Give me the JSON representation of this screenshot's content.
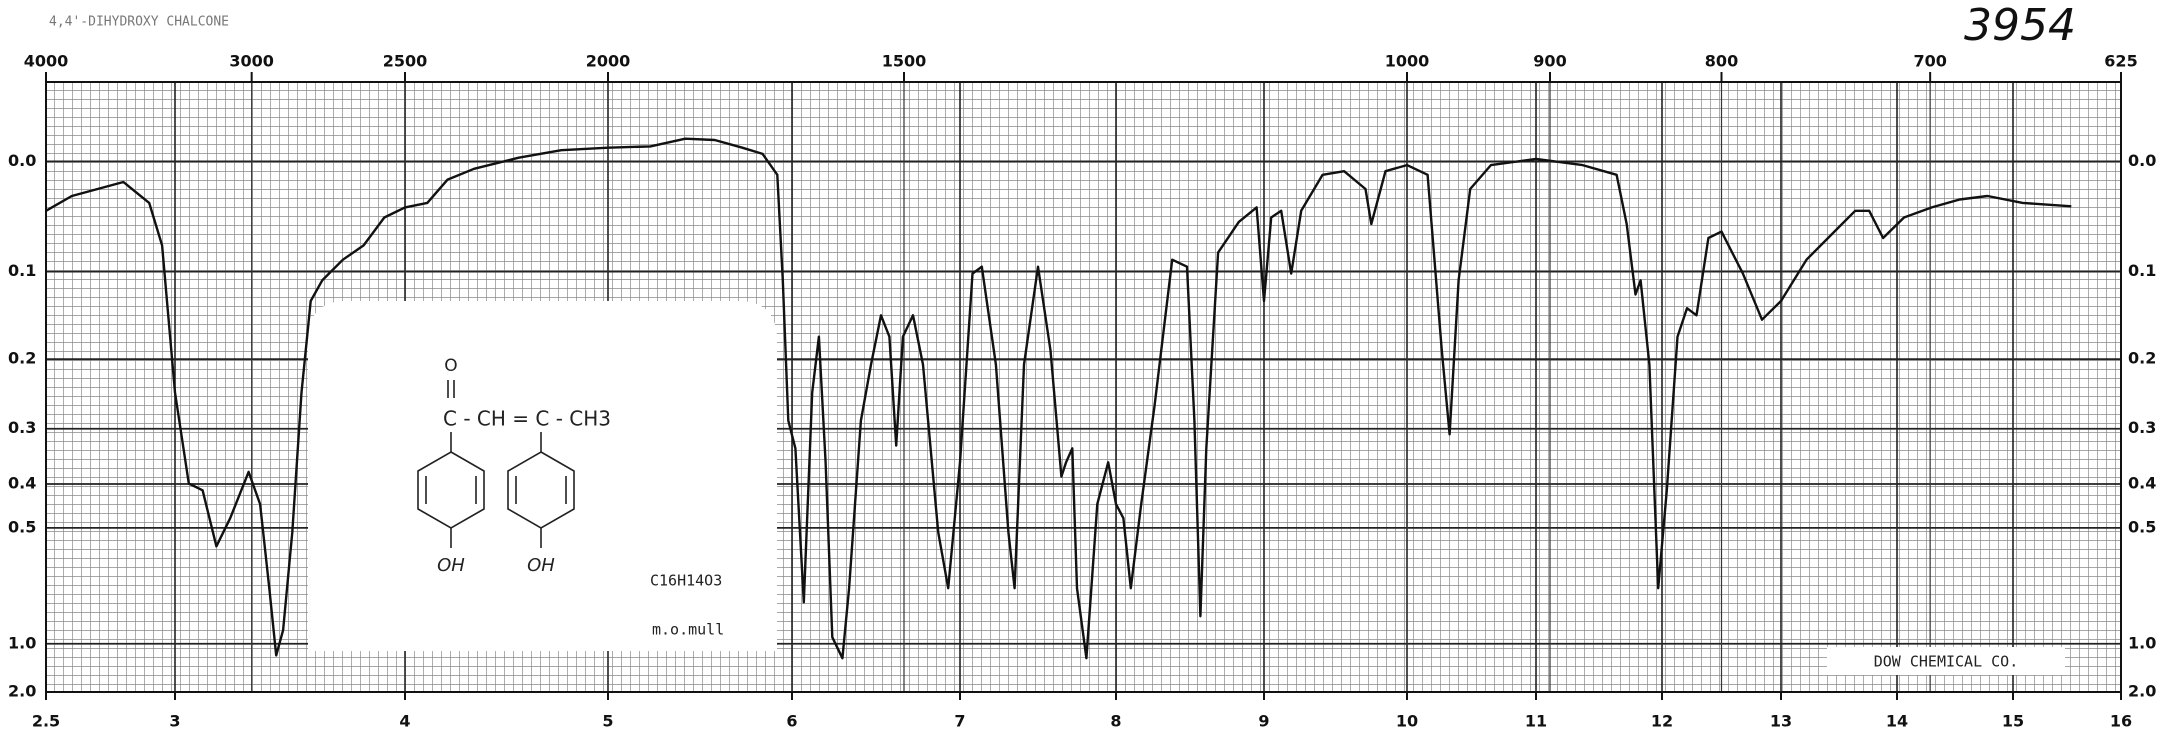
{
  "chart_data": {
    "type": "line",
    "title": "4,4'-DIHYDROXY CHALCONE",
    "catalog_number": "3954",
    "structure": {
      "carbonyl": "O",
      "chain": "C - CH = C - CH3",
      "substituents": [
        "OH",
        "OH"
      ]
    },
    "formula": "C16H14O3",
    "sample": "m.o.mull",
    "source": "DOW CHEMICAL CO.",
    "color": "#111111",
    "grid": true,
    "yscale": "transmittance",
    "xlim": [
      2.5,
      16
    ],
    "xticks": [
      2.5,
      3,
      4,
      5,
      6,
      7,
      8,
      9,
      10,
      11,
      12,
      13,
      14,
      15,
      16
    ],
    "x2ticks": [
      4000,
      3000,
      2500,
      2000,
      1500,
      1000,
      900,
      800,
      700,
      625
    ],
    "ylim": [
      -0.06,
      2
    ],
    "yticks": [
      {
        "value": 0,
        "label": "0.0"
      },
      0.1,
      0.2,
      0.3,
      0.4,
      0.5,
      {
        "value": 1,
        "label": "1.0"
      },
      {
        "value": 2,
        "label": "2.0"
      }
    ],
    "x": [
      2.5,
      2.6,
      2.7,
      2.8,
      2.9,
      2.95,
      3.0,
      3.06,
      3.12,
      3.18,
      3.24,
      3.32,
      3.37,
      3.41,
      3.44,
      3.47,
      3.51,
      3.55,
      3.59,
      3.64,
      3.73,
      3.82,
      3.91,
      4.0,
      4.11,
      4.21,
      4.34,
      4.56,
      4.77,
      5.0,
      5.23,
      5.42,
      5.58,
      5.73,
      5.84,
      5.92,
      5.95,
      5.98,
      6.02,
      6.07,
      6.12,
      6.16,
      6.2,
      6.24,
      6.3,
      6.34,
      6.41,
      6.47,
      6.53,
      6.58,
      6.62,
      6.66,
      6.72,
      6.78,
      6.87,
      6.93,
      7.0,
      7.08,
      7.14,
      7.23,
      7.31,
      7.35,
      7.41,
      7.5,
      7.58,
      7.65,
      7.68,
      7.72,
      7.75,
      7.81,
      7.88,
      7.95,
      8.0,
      8.05,
      8.1,
      8.17,
      8.26,
      8.38,
      8.48,
      8.53,
      8.57,
      8.61,
      8.69,
      8.83,
      8.95,
      9.0,
      9.05,
      9.12,
      9.19,
      9.26,
      9.41,
      9.56,
      9.71,
      9.75,
      9.85,
      10.0,
      10.16,
      10.27,
      10.33,
      10.4,
      10.49,
      10.65,
      11.0,
      11.37,
      11.64,
      11.72,
      11.79,
      11.83,
      11.9,
      11.97,
      12.04,
      12.13,
      12.21,
      12.29,
      12.39,
      12.5,
      12.68,
      12.84,
      13.0,
      13.22,
      13.46,
      13.64,
      13.76,
      13.88,
      14.06,
      14.3,
      14.54,
      14.78,
      15.09,
      15.54
    ],
    "values": [
      0.042,
      0.029,
      0.023,
      0.017,
      0.035,
      0.074,
      0.245,
      0.399,
      0.413,
      0.55,
      0.476,
      0.376,
      0.443,
      0.691,
      1.106,
      0.902,
      0.511,
      0.245,
      0.131,
      0.109,
      0.088,
      0.074,
      0.048,
      0.039,
      0.035,
      0.015,
      0.006,
      -0.003,
      -0.009,
      -0.011,
      -0.012,
      -0.018,
      -0.017,
      -0.011,
      -0.006,
      0.011,
      0.109,
      0.287,
      0.333,
      0.751,
      0.245,
      0.172,
      0.358,
      0.95,
      1.136,
      0.691,
      0.287,
      0.207,
      0.147,
      0.172,
      0.328,
      0.172,
      0.147,
      0.207,
      0.511,
      0.691,
      0.358,
      0.102,
      0.095,
      0.207,
      0.511,
      0.691,
      0.207,
      0.095,
      0.189,
      0.385,
      0.358,
      0.333,
      0.691,
      1.136,
      0.443,
      0.358,
      0.443,
      0.476,
      0.691,
      0.443,
      0.265,
      0.088,
      0.095,
      0.287,
      0.82,
      0.333,
      0.081,
      0.052,
      0.039,
      0.131,
      0.048,
      0.042,
      0.102,
      0.042,
      0.011,
      0.008,
      0.023,
      0.054,
      0.008,
      0.003,
      0.011,
      0.189,
      0.309,
      0.109,
      0.023,
      0.003,
      -0.002,
      0.003,
      0.011,
      0.054,
      0.124,
      0.109,
      0.207,
      0.691,
      0.413,
      0.172,
      0.139,
      0.147,
      0.067,
      0.061,
      0.102,
      0.152,
      0.131,
      0.088,
      0.061,
      0.042,
      0.042,
      0.067,
      0.048,
      0.039,
      0.032,
      0.029,
      0.035,
      0.038
    ]
  }
}
